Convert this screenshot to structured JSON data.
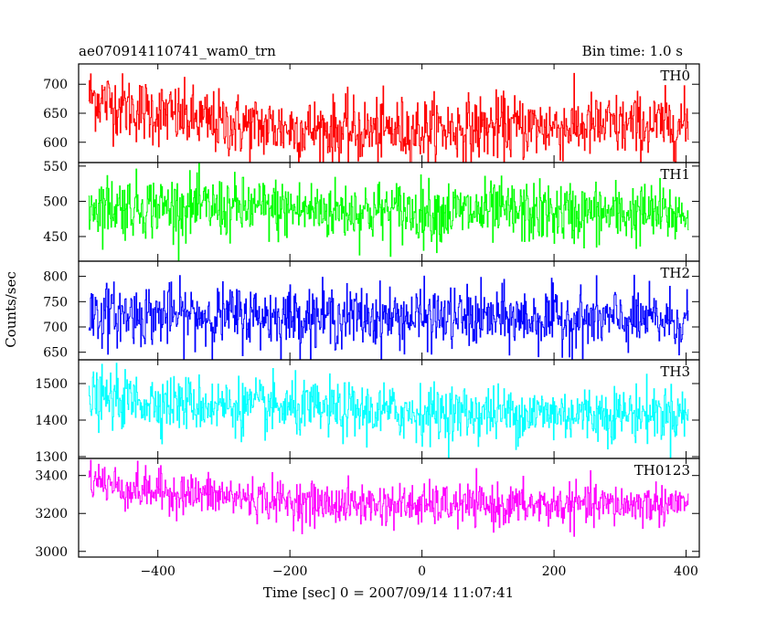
{
  "header": {
    "title": "ae070914110741_wam0_trn",
    "bin_time": "Bin time: 1.0 s"
  },
  "chart_data": {
    "type": "line",
    "title": "ae070914110741_wam0_trn",
    "subtitle": "Bin time: 1.0 s",
    "xlabel": "Time [sec] 0 = 2007/09/14 11:07:41",
    "ylabel": "Counts/sec",
    "xlim": [
      -520,
      420
    ],
    "x_ticks": [
      -400,
      -200,
      0,
      200,
      400
    ],
    "x_tick_labels": [
      "−400",
      "−200",
      "0",
      "200",
      "400"
    ],
    "x_range_data": [
      -505,
      403
    ],
    "bin_time": 1.0,
    "panels": [
      {
        "name": "TH0",
        "color": "#ff0000",
        "ylim": [
          565,
          735
        ],
        "y_ticks": [
          600,
          650,
          700
        ],
        "y_tick_labels": [
          "600",
          "650",
          "700"
        ],
        "mean_profile": {
          "x": [
            -505,
            -450,
            -300,
            -100,
            100,
            300,
            403
          ],
          "y": [
            680,
            660,
            630,
            618,
            625,
            628,
            630
          ]
        },
        "noise_sd": 28
      },
      {
        "name": "TH1",
        "color": "#00ff00",
        "ylim": [
          415,
          555
        ],
        "y_ticks": [
          450,
          500,
          550
        ],
        "y_tick_labels": [
          "450",
          "500",
          "550"
        ],
        "mean_profile": {
          "x": [
            -505,
            -300,
            0,
            200,
            403
          ],
          "y": [
            495,
            490,
            485,
            483,
            482
          ]
        },
        "noise_sd": 22
      },
      {
        "name": "TH2",
        "color": "#0000ff",
        "ylim": [
          635,
          830
        ],
        "y_ticks": [
          650,
          700,
          750,
          800
        ],
        "y_tick_labels": [
          "650",
          "700",
          "750",
          "800"
        ],
        "mean_profile": {
          "x": [
            -505,
            -300,
            0,
            200,
            403
          ],
          "y": [
            725,
            722,
            718,
            715,
            712
          ]
        },
        "noise_sd": 30
      },
      {
        "name": "TH3",
        "color": "#00ffff",
        "ylim": [
          1295,
          1565
        ],
        "y_ticks": [
          1300,
          1400,
          1500
        ],
        "y_tick_labels": [
          "1300",
          "1400",
          "1500"
        ],
        "mean_profile": {
          "x": [
            -505,
            -400,
            -200,
            0,
            200,
            403
          ],
          "y": [
            1460,
            1450,
            1430,
            1420,
            1418,
            1418
          ]
        },
        "noise_sd": 38
      },
      {
        "name": "TH0123",
        "color": "#ff00ff",
        "ylim": [
          2970,
          3490
        ],
        "y_ticks": [
          3000,
          3200,
          3400
        ],
        "y_tick_labels": [
          "3000",
          "3200",
          "3400"
        ],
        "mean_profile": {
          "x": [
            -505,
            -450,
            -300,
            -150,
            100,
            300,
            403
          ],
          "y": [
            3390,
            3330,
            3290,
            3250,
            3240,
            3245,
            3255
          ]
        },
        "noise_sd": 55
      }
    ]
  }
}
